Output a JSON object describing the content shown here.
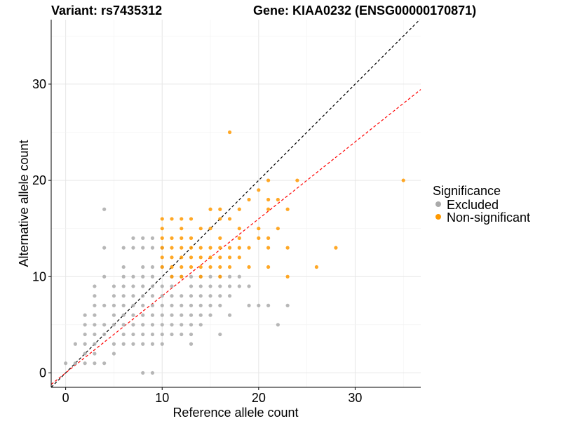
{
  "title_left": "Variant: rs7435312",
  "title_right": "Gene: KIAA0232 (ENSG00000170871)",
  "chart_data": {
    "type": "scatter",
    "xlabel": "Reference allele count",
    "ylabel": "Alternative allele count",
    "xlim": [
      -1.5,
      36.8
    ],
    "ylim": [
      -1.5,
      36.7
    ],
    "xticks": [
      0,
      10,
      20,
      30
    ],
    "yticks": [
      0,
      10,
      20,
      30
    ],
    "grid": true,
    "legend_position": "right",
    "legend": {
      "title": "Significance",
      "entries": [
        {
          "label": "Excluded",
          "color": "#aaaaaa"
        },
        {
          "label": "Non-significant",
          "color": "#ff9900"
        }
      ]
    },
    "reference_lines": [
      {
        "slope": 1.0,
        "intercept": 0,
        "color": "#000000",
        "style": "dashed"
      },
      {
        "slope": 0.8,
        "intercept": 0,
        "color": "#ff0000",
        "style": "dashed"
      }
    ],
    "series": [
      {
        "name": "Excluded",
        "color": "#aaaaaa",
        "points": [
          [
            0,
            1
          ],
          [
            1,
            1
          ],
          [
            2,
            1
          ],
          [
            3,
            1
          ],
          [
            4,
            1
          ],
          [
            2,
            2
          ],
          [
            3,
            2
          ],
          [
            5,
            2
          ],
          [
            1,
            3
          ],
          [
            2,
            3
          ],
          [
            3,
            3
          ],
          [
            5,
            3
          ],
          [
            6,
            3
          ],
          [
            7,
            3
          ],
          [
            8,
            3
          ],
          [
            9,
            3
          ],
          [
            10,
            3
          ],
          [
            13,
            3
          ],
          [
            2,
            4
          ],
          [
            3,
            4
          ],
          [
            4,
            4
          ],
          [
            6,
            4
          ],
          [
            7,
            4
          ],
          [
            8,
            4
          ],
          [
            9,
            4
          ],
          [
            10,
            4
          ],
          [
            11,
            4
          ],
          [
            12,
            4
          ],
          [
            13,
            4
          ],
          [
            16,
            4
          ],
          [
            2,
            5
          ],
          [
            3,
            5
          ],
          [
            4,
            5
          ],
          [
            5,
            5
          ],
          [
            6,
            5
          ],
          [
            7,
            5
          ],
          [
            8,
            5
          ],
          [
            9,
            5
          ],
          [
            10,
            5
          ],
          [
            11,
            5
          ],
          [
            12,
            5
          ],
          [
            13,
            5
          ],
          [
            14,
            5
          ],
          [
            22,
            5
          ],
          [
            2,
            6
          ],
          [
            3,
            6
          ],
          [
            5,
            6
          ],
          [
            6,
            6
          ],
          [
            7,
            6
          ],
          [
            8,
            6
          ],
          [
            9,
            6
          ],
          [
            10,
            6
          ],
          [
            11,
            6
          ],
          [
            12,
            6
          ],
          [
            13,
            6
          ],
          [
            14,
            6
          ],
          [
            15,
            6
          ],
          [
            17,
            6
          ],
          [
            3,
            7
          ],
          [
            4,
            7
          ],
          [
            5,
            7
          ],
          [
            6,
            7
          ],
          [
            7,
            7
          ],
          [
            8,
            7
          ],
          [
            9,
            7
          ],
          [
            10,
            7
          ],
          [
            11,
            7
          ],
          [
            12,
            7
          ],
          [
            13,
            7
          ],
          [
            14,
            7
          ],
          [
            15,
            7
          ],
          [
            16,
            7
          ],
          [
            19,
            7
          ],
          [
            20,
            7
          ],
          [
            21,
            7
          ],
          [
            23,
            7
          ],
          [
            3,
            8
          ],
          [
            5,
            8
          ],
          [
            6,
            8
          ],
          [
            7,
            8
          ],
          [
            8,
            8
          ],
          [
            9,
            8
          ],
          [
            10,
            8
          ],
          [
            11,
            8
          ],
          [
            12,
            8
          ],
          [
            13,
            8
          ],
          [
            14,
            8
          ],
          [
            15,
            8
          ],
          [
            16,
            8
          ],
          [
            17,
            8
          ],
          [
            3,
            9
          ],
          [
            5,
            9
          ],
          [
            6,
            9
          ],
          [
            7,
            9
          ],
          [
            8,
            9
          ],
          [
            9,
            9
          ],
          [
            10,
            9
          ],
          [
            11,
            9
          ],
          [
            13,
            9
          ],
          [
            14,
            9
          ],
          [
            15,
            9
          ],
          [
            16,
            9
          ],
          [
            17,
            9
          ],
          [
            18,
            9
          ],
          [
            19,
            9
          ],
          [
            4,
            10
          ],
          [
            6,
            10
          ],
          [
            7,
            10
          ],
          [
            8,
            10
          ],
          [
            9,
            10
          ],
          [
            11,
            10
          ],
          [
            12,
            10
          ],
          [
            13,
            10
          ],
          [
            14,
            10
          ],
          [
            15,
            10
          ],
          [
            16,
            10
          ],
          [
            17,
            10
          ],
          [
            18,
            10
          ],
          [
            6,
            11
          ],
          [
            8,
            11
          ],
          [
            9,
            11
          ],
          [
            10,
            11
          ],
          [
            4,
            13
          ],
          [
            6,
            13
          ],
          [
            7,
            13
          ],
          [
            8,
            13
          ],
          [
            9,
            13
          ],
          [
            10,
            13
          ],
          [
            7,
            14
          ],
          [
            8,
            14
          ],
          [
            9,
            14
          ],
          [
            4,
            17
          ],
          [
            9,
            0
          ],
          [
            8,
            0
          ]
        ]
      },
      {
        "name": "Non-significant",
        "color": "#ff9900",
        "points": [
          [
            17,
            25
          ],
          [
            21,
            20
          ],
          [
            24,
            20
          ],
          [
            35,
            20
          ],
          [
            20,
            19
          ],
          [
            22,
            18
          ],
          [
            21,
            18
          ],
          [
            19,
            18
          ],
          [
            15,
            17
          ],
          [
            16,
            17
          ],
          [
            18,
            17
          ],
          [
            21,
            17
          ],
          [
            23,
            17
          ],
          [
            10,
            16
          ],
          [
            11,
            16
          ],
          [
            12,
            16
          ],
          [
            13,
            16
          ],
          [
            16,
            16
          ],
          [
            17,
            16
          ],
          [
            10,
            15
          ],
          [
            12,
            15
          ],
          [
            14,
            15
          ],
          [
            15,
            15
          ],
          [
            18,
            15
          ],
          [
            20,
            15
          ],
          [
            22,
            15
          ],
          [
            10,
            14
          ],
          [
            11,
            14
          ],
          [
            12,
            14
          ],
          [
            13,
            14
          ],
          [
            16,
            14
          ],
          [
            18,
            14
          ],
          [
            20,
            14
          ],
          [
            21,
            14
          ],
          [
            10,
            13
          ],
          [
            11,
            13
          ],
          [
            12,
            13
          ],
          [
            13,
            13
          ],
          [
            14,
            13
          ],
          [
            15,
            13
          ],
          [
            16,
            13
          ],
          [
            17,
            13
          ],
          [
            18,
            13
          ],
          [
            19,
            13
          ],
          [
            21,
            13
          ],
          [
            23,
            13
          ],
          [
            28,
            13
          ],
          [
            10,
            12
          ],
          [
            11,
            12
          ],
          [
            12,
            12
          ],
          [
            13,
            12
          ],
          [
            14,
            12
          ],
          [
            15,
            12
          ],
          [
            16,
            12
          ],
          [
            17,
            12
          ],
          [
            18,
            12
          ],
          [
            10,
            11
          ],
          [
            11,
            11
          ],
          [
            12,
            11
          ],
          [
            13,
            11
          ],
          [
            14,
            11
          ],
          [
            15,
            11
          ],
          [
            16,
            11
          ],
          [
            17,
            11
          ],
          [
            19,
            11
          ],
          [
            21,
            11
          ],
          [
            26,
            11
          ],
          [
            11,
            10
          ],
          [
            12,
            10
          ],
          [
            14,
            10
          ],
          [
            16,
            10
          ],
          [
            23,
            10
          ]
        ]
      }
    ]
  }
}
